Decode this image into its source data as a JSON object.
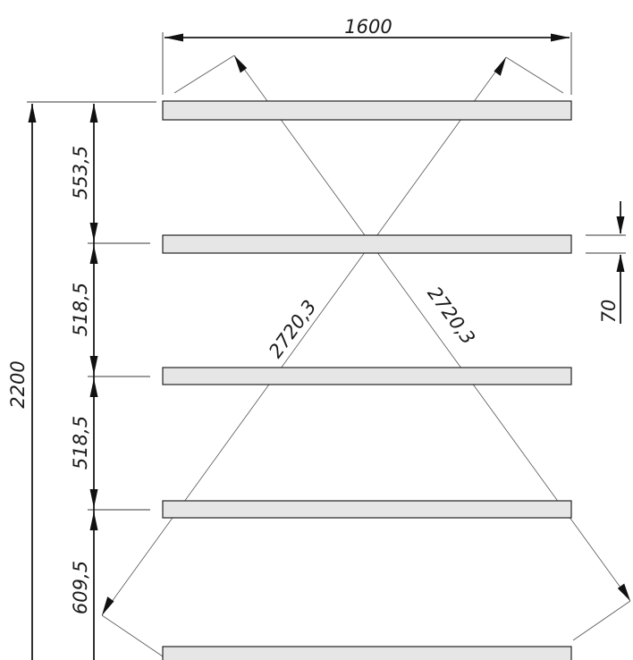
{
  "drawing": {
    "overall_width": "1600",
    "overall_height": "2200",
    "spacing_1": "553,5",
    "spacing_2": "518,5",
    "spacing_3": "518,5",
    "spacing_4": "609,5",
    "plank_thickness": "70",
    "diagonal_1": "2720,3",
    "diagonal_2": "2720,3"
  },
  "colors": {
    "plank_fill": "#e6e6e6",
    "line": "#1a1a1a"
  }
}
